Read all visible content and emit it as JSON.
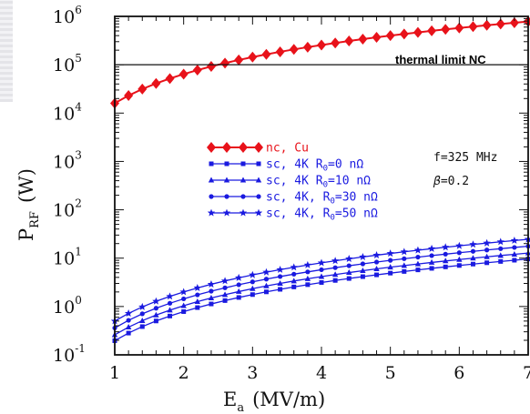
{
  "chart_data": {
    "type": "line",
    "x": [
      1.0,
      1.2,
      1.4,
      1.6,
      1.8,
      2.0,
      2.2,
      2.4,
      2.6,
      2.8,
      3.0,
      3.2,
      3.4,
      3.6,
      3.8,
      4.0,
      4.2,
      4.4,
      4.6,
      4.8,
      5.0,
      5.2,
      5.4,
      5.6,
      5.8,
      6.0,
      6.2,
      6.4,
      6.6,
      6.8,
      7.0
    ],
    "xlim": [
      1,
      7
    ],
    "ylim": [
      0.1,
      1000000
    ],
    "yscale": "log",
    "xticks": [
      "1",
      "2",
      "3",
      "4",
      "5",
      "6",
      "7"
    ],
    "yticks": [
      {
        "base": "10",
        "exp": "-1"
      },
      {
        "base": "10",
        "exp": "0"
      },
      {
        "base": "10",
        "exp": "1"
      },
      {
        "base": "10",
        "exp": "2"
      },
      {
        "base": "10",
        "exp": "3"
      },
      {
        "base": "10",
        "exp": "4"
      },
      {
        "base": "10",
        "exp": "5"
      },
      {
        "base": "10",
        "exp": "6"
      }
    ],
    "xlabel": {
      "main": "E",
      "sub": "a",
      "unit": "(MV/m)"
    },
    "ylabel": {
      "main": "P",
      "sub": "RF",
      "unit": "(W)"
    },
    "grid": false,
    "legend_position": "center-left",
    "series": [
      {
        "label": {
          "pre": "nc, Cu",
          "sub": "",
          "post": ""
        },
        "color": "#e8121a",
        "marker": "diamond",
        "values": [
          16000,
          23000,
          31400,
          41000,
          51800,
          64000,
          77400,
          92200,
          108200,
          125400,
          144000,
          163800,
          185000,
          207400,
          231000,
          256000,
          282200,
          309800,
          338600,
          368600,
          400000,
          432600,
          466600,
          501800,
          538200,
          576000,
          615000,
          655400,
          697000,
          740000,
          784000
        ]
      },
      {
        "label": {
          "pre": "sc, 4K R",
          "sub": "0",
          "post": "=0 nΩ"
        },
        "color": "#1a1ae0",
        "marker": "square",
        "values": [
          0.196,
          0.282,
          0.384,
          0.502,
          0.635,
          0.784,
          0.949,
          1.129,
          1.325,
          1.537,
          1.764,
          2.007,
          2.266,
          2.54,
          2.83,
          3.136,
          3.457,
          3.795,
          4.147,
          4.516,
          4.9,
          5.3,
          5.715,
          6.147,
          6.593,
          7.056,
          7.534,
          8.028,
          8.538,
          9.063,
          9.604
        ]
      },
      {
        "label": {
          "pre": "sc, 4K R",
          "sub": "0",
          "post": "=10 nΩ"
        },
        "color": "#1a1ae0",
        "marker": "triangle",
        "values": [
          0.26,
          0.374,
          0.509,
          0.666,
          0.842,
          1.04,
          1.258,
          1.498,
          1.758,
          2.038,
          2.34,
          2.662,
          3.006,
          3.37,
          3.754,
          4.16,
          4.586,
          5.034,
          5.502,
          5.99,
          6.5,
          7.03,
          7.582,
          8.154,
          8.746,
          9.36,
          9.994,
          10.65,
          11.33,
          12.02,
          12.74
        ]
      },
      {
        "label": {
          "pre": "sc, 4K, R",
          "sub": "0",
          "post": "=30 nΩ"
        },
        "color": "#1a1ae0",
        "marker": "circle",
        "values": [
          0.36,
          0.518,
          0.706,
          0.922,
          1.166,
          1.44,
          1.742,
          2.074,
          2.434,
          2.822,
          3.24,
          3.686,
          4.162,
          4.666,
          5.198,
          5.76,
          6.35,
          6.97,
          7.618,
          8.294,
          9.0,
          9.734,
          10.5,
          11.29,
          12.11,
          12.96,
          13.84,
          14.75,
          15.68,
          16.65,
          17.64
        ]
      },
      {
        "label": {
          "pre": "sc, 4K, R",
          "sub": "0",
          "post": "=50 nΩ"
        },
        "color": "#1a1ae0",
        "marker": "star",
        "values": [
          0.5,
          0.72,
          0.98,
          1.28,
          1.62,
          2.0,
          2.42,
          2.88,
          3.38,
          3.92,
          4.5,
          5.12,
          5.78,
          6.48,
          7.22,
          8.0,
          8.82,
          9.68,
          10.58,
          11.52,
          12.5,
          13.52,
          14.58,
          15.68,
          16.82,
          18.0,
          19.22,
          20.48,
          21.78,
          23.12,
          24.5
        ]
      }
    ],
    "reference_line": {
      "y": 100000,
      "label": "thermal limit NC"
    },
    "annotations": [
      {
        "text": "f=325  MHz"
      },
      {
        "symbol": "β",
        "text": "=0.2"
      }
    ]
  }
}
